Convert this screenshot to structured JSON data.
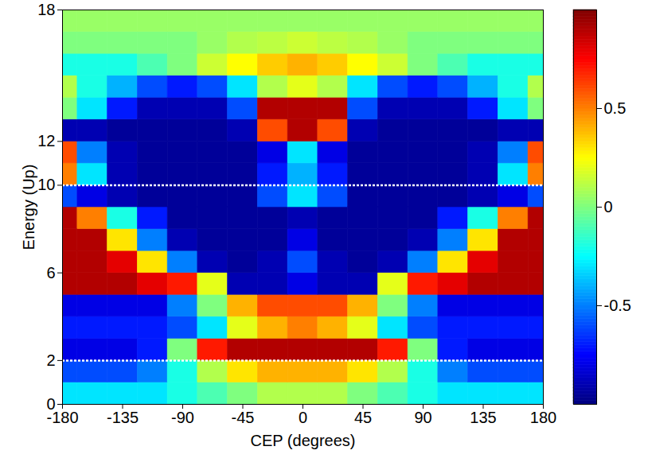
{
  "chart_data": {
    "type": "heatmap",
    "x_label": "CEP (degrees)",
    "y_label": "Energy (Up)",
    "x": [
      -180,
      -157.5,
      -135,
      -112.5,
      -90,
      -67.5,
      -45,
      -22.5,
      0,
      22.5,
      45,
      67.5,
      90,
      112.5,
      135,
      157.5,
      180
    ],
    "y_bins": [
      0,
      1,
      2,
      3,
      4,
      5,
      6,
      7,
      8,
      9,
      10,
      11,
      12,
      13,
      14,
      15,
      16,
      17,
      18
    ],
    "values": [
      [
        -0.3,
        -0.3,
        -0.3,
        -0.3,
        -0.2,
        -0.1,
        0.0,
        0.1,
        0.1,
        0.1,
        0.0,
        -0.1,
        -0.2,
        -0.3,
        -0.3,
        -0.3,
        -0.3
      ],
      [
        -0.6,
        -0.6,
        -0.6,
        -0.5,
        -0.2,
        0.1,
        0.3,
        0.4,
        0.4,
        0.4,
        0.3,
        0.1,
        -0.2,
        -0.5,
        -0.6,
        -0.6,
        -0.6
      ],
      [
        -0.8,
        -0.8,
        -0.8,
        -0.7,
        0.0,
        0.7,
        0.9,
        0.9,
        0.9,
        0.9,
        0.9,
        0.7,
        0.0,
        -0.7,
        -0.8,
        -0.8,
        -0.8
      ],
      [
        -0.7,
        -0.7,
        -0.7,
        -0.7,
        -0.6,
        -0.3,
        0.2,
        0.4,
        0.5,
        0.4,
        0.2,
        -0.3,
        -0.6,
        -0.7,
        -0.7,
        -0.7,
        -0.7
      ],
      [
        -0.8,
        -0.8,
        -0.8,
        -0.8,
        -0.5,
        0.0,
        0.4,
        0.6,
        0.6,
        0.6,
        0.4,
        0.0,
        -0.5,
        -0.8,
        -0.8,
        -0.8,
        -0.8
      ],
      [
        0.9,
        0.9,
        0.9,
        0.8,
        0.7,
        0.2,
        -0.9,
        -0.9,
        -0.8,
        -0.9,
        -0.9,
        0.2,
        0.7,
        0.8,
        0.9,
        0.9,
        0.9
      ],
      [
        0.9,
        0.9,
        0.8,
        0.3,
        -0.5,
        -0.9,
        -0.95,
        -0.9,
        -0.6,
        -0.9,
        -0.95,
        -0.9,
        -0.5,
        0.3,
        0.8,
        0.9,
        0.9
      ],
      [
        0.9,
        0.9,
        0.3,
        -0.5,
        -0.9,
        -0.95,
        -0.95,
        -0.95,
        -0.8,
        -0.95,
        -0.95,
        -0.95,
        -0.9,
        -0.5,
        0.3,
        0.9,
        0.9
      ],
      [
        0.9,
        0.5,
        -0.2,
        -0.7,
        -0.95,
        -0.95,
        -0.95,
        -0.95,
        -0.9,
        -0.95,
        -0.95,
        -0.95,
        -0.95,
        -0.7,
        -0.2,
        0.5,
        0.9
      ],
      [
        -0.6,
        -0.8,
        -0.9,
        -0.95,
        -0.95,
        -0.95,
        -0.95,
        -0.6,
        -0.3,
        -0.6,
        -0.95,
        -0.95,
        -0.95,
        -0.95,
        -0.9,
        -0.8,
        -0.6
      ],
      [
        0.5,
        -0.3,
        -0.9,
        -0.95,
        -0.95,
        -0.95,
        -0.95,
        -0.7,
        -0.4,
        -0.7,
        -0.95,
        -0.95,
        -0.95,
        -0.95,
        -0.9,
        -0.3,
        0.5
      ],
      [
        0.6,
        -0.5,
        -0.9,
        -0.95,
        -0.95,
        -0.95,
        -0.95,
        -0.8,
        -0.3,
        -0.8,
        -0.95,
        -0.95,
        -0.95,
        -0.95,
        -0.9,
        -0.5,
        0.6
      ],
      [
        -0.9,
        -0.9,
        -0.95,
        -0.95,
        -0.95,
        -0.95,
        -0.9,
        0.6,
        0.9,
        0.6,
        -0.9,
        -0.95,
        -0.95,
        -0.95,
        -0.95,
        -0.9,
        -0.9
      ],
      [
        0.0,
        -0.3,
        -0.7,
        -0.9,
        -0.9,
        -0.9,
        -0.6,
        0.9,
        0.9,
        0.9,
        -0.6,
        -0.9,
        -0.9,
        -0.9,
        -0.7,
        -0.3,
        0.0
      ],
      [
        0.1,
        -0.2,
        -0.4,
        -0.6,
        -0.7,
        -0.6,
        -0.3,
        0.1,
        0.2,
        0.1,
        -0.3,
        -0.6,
        -0.7,
        -0.6,
        -0.4,
        -0.2,
        0.1
      ],
      [
        -0.2,
        -0.2,
        -0.2,
        -0.1,
        0.0,
        0.15,
        0.25,
        0.35,
        0.4,
        0.35,
        0.25,
        0.15,
        0.0,
        -0.1,
        -0.2,
        -0.2,
        -0.2
      ],
      [
        0.0,
        0.0,
        0.0,
        0.0,
        0.0,
        0.05,
        0.1,
        0.12,
        0.15,
        0.12,
        0.1,
        0.05,
        0.0,
        0.0,
        0.0,
        0.0,
        0.0
      ],
      [
        0.05,
        0.05,
        0.05,
        0.05,
        0.05,
        0.05,
        0.05,
        0.05,
        0.05,
        0.05,
        0.05,
        0.05,
        0.05,
        0.05,
        0.05,
        0.05,
        0.05
      ]
    ],
    "xlim": [
      -180,
      180
    ],
    "ylim": [
      0,
      18
    ],
    "xticks": [
      -180,
      -135,
      -90,
      -45,
      0,
      45,
      90,
      135,
      180
    ],
    "yticks": [
      0,
      2,
      6,
      10,
      12,
      18
    ],
    "colorbar": {
      "lim": [
        -1,
        1
      ],
      "ticks": [
        -0.5,
        0,
        0.5
      ]
    },
    "hlines": [
      2,
      10
    ]
  }
}
